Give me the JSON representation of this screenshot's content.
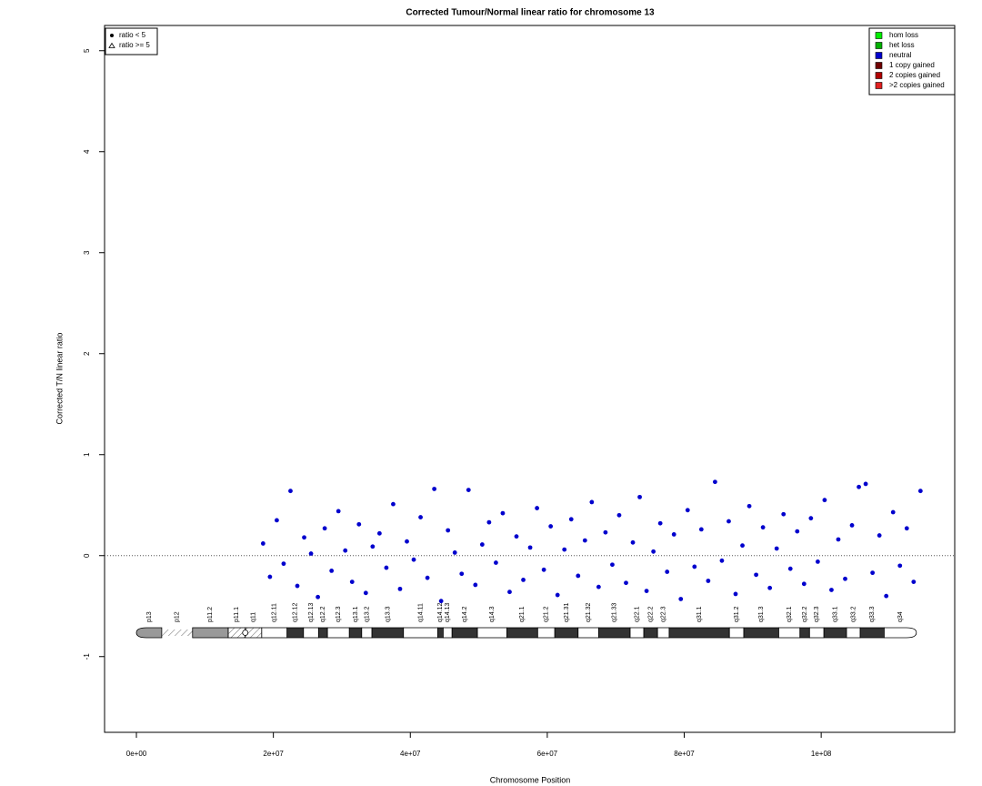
{
  "chart_data": {
    "type": "scatter",
    "title": "Corrected Tumour/Normal linear ratio for chromosome  13",
    "x_label": "Chromosome Position",
    "y_label": "Corrected T/N linear ratio",
    "xlim": [
      -4650000,
      119500000
    ],
    "ylim": [
      -1.75,
      5.25
    ],
    "xticks": [
      {
        "value": 0,
        "label": "0e+00"
      },
      {
        "value": 20000000,
        "label": "2e+07"
      },
      {
        "value": 40000000,
        "label": "4e+07"
      },
      {
        "value": 60000000,
        "label": "6e+07"
      },
      {
        "value": 80000000,
        "label": "8e+07"
      },
      {
        "value": 100000000,
        "label": "1e+08"
      }
    ],
    "yticks": [
      -1,
      0,
      1,
      2,
      3,
      4,
      5
    ],
    "reference_line": 0,
    "series": [
      {
        "name": "neutral",
        "color": "#0000cd",
        "x": [
          18500000,
          19500000,
          20500000,
          21500000,
          22500000,
          23500000,
          24500000,
          25500000,
          26500000,
          27500000,
          28500000,
          29500000,
          30500000,
          31500000,
          32500000,
          33500000,
          34500000,
          35500000,
          36500000,
          37500000,
          38500000,
          39500000,
          40500000,
          41500000,
          42500000,
          43500000,
          44500000,
          45500000,
          46500000,
          47500000,
          48500000,
          49500000,
          50500000,
          51500000,
          52500000,
          53500000,
          54500000,
          55500000,
          56500000,
          57500000,
          58500000,
          59500000,
          60500000,
          61500000,
          62500000,
          63500000,
          64500000,
          65500000,
          66500000,
          67500000,
          68500000,
          69500000,
          70500000,
          71500000,
          72500000,
          73500000,
          74500000,
          75500000,
          76500000,
          77500000,
          78500000,
          79500000,
          80500000,
          81500000,
          82500000,
          83500000,
          84500000,
          85500000,
          86500000,
          87500000,
          88500000,
          89500000,
          90500000,
          91500000,
          92500000,
          93500000,
          94500000,
          95500000,
          96500000,
          97500000,
          98500000,
          99500000,
          100500000,
          101500000,
          102500000,
          103500000,
          104500000,
          105500000,
          106500000,
          107500000,
          108500000,
          109500000,
          110500000,
          111500000,
          112500000,
          113500000,
          114500000
        ],
        "values": [
          0.12,
          -0.21,
          0.35,
          -0.08,
          0.64,
          -0.3,
          0.18,
          0.02,
          -0.41,
          0.27,
          -0.15,
          0.44,
          0.05,
          -0.26,
          0.31,
          -0.37,
          0.09,
          0.22,
          -0.12,
          0.51,
          -0.33,
          0.14,
          -0.04,
          0.38,
          -0.22,
          0.66,
          -0.45,
          0.25,
          0.03,
          -0.18,
          0.65,
          -0.29,
          0.11,
          0.33,
          -0.07,
          0.42,
          -0.36,
          0.19,
          -0.24,
          0.08,
          0.47,
          -0.14,
          0.29,
          -0.39,
          0.06,
          0.36,
          -0.2,
          0.15,
          0.53,
          -0.31,
          0.23,
          -0.09,
          0.4,
          -0.27,
          0.13,
          0.58,
          -0.35,
          0.04,
          0.32,
          -0.16,
          0.21,
          -0.43,
          0.45,
          -0.11,
          0.26,
          -0.25,
          0.73,
          -0.05,
          0.34,
          -0.38,
          0.1,
          0.49,
          -0.19,
          0.28,
          -0.32,
          0.07,
          0.41,
          -0.13,
          0.24,
          -0.28,
          0.37,
          -0.06,
          0.55,
          -0.34,
          0.16,
          -0.23,
          0.3,
          0.68,
          0.71,
          -0.17,
          0.2,
          -0.4,
          0.43,
          -0.1,
          0.27,
          -0.26,
          0.64
        ]
      }
    ],
    "point_legend": [
      {
        "label": "ratio < 5",
        "shape": "circle"
      },
      {
        "label": "ratio >= 5",
        "shape": "triangle"
      }
    ],
    "legend": [
      {
        "label": "hom loss",
        "color": "#00ee00"
      },
      {
        "label": "het loss",
        "color": "#00b000"
      },
      {
        "label": "neutral",
        "color": "#0000cd"
      },
      {
        "label": "1 copy gained",
        "color": "#700000"
      },
      {
        "label": "2 copies gained",
        "color": "#b00000"
      },
      {
        "label": ">2 copies gained",
        "color": "#e02020"
      }
    ],
    "ideogram": [
      {
        "label": "p13",
        "start": 0,
        "end": 3700000,
        "stain": "gpos50"
      },
      {
        "label": "p12",
        "start": 3700000,
        "end": 8200000,
        "stain": "stalk"
      },
      {
        "label": "p11.2",
        "start": 8200000,
        "end": 13400000,
        "stain": "gpos50"
      },
      {
        "label": "p11.1",
        "start": 13400000,
        "end": 15900000,
        "stain": "acen"
      },
      {
        "label": "q11",
        "start": 15900000,
        "end": 18300000,
        "stain": "acen"
      },
      {
        "label": "q12.11",
        "start": 18300000,
        "end": 22000000,
        "stain": "gneg"
      },
      {
        "label": "q12.12",
        "start": 22000000,
        "end": 24400000,
        "stain": "gpos100"
      },
      {
        "label": "q12.13",
        "start": 24400000,
        "end": 26600000,
        "stain": "gneg"
      },
      {
        "label": "q12.2",
        "start": 26600000,
        "end": 27900000,
        "stain": "gpos100"
      },
      {
        "label": "q12.3",
        "start": 27900000,
        "end": 31100000,
        "stain": "gneg"
      },
      {
        "label": "q13.1",
        "start": 31100000,
        "end": 32900000,
        "stain": "gpos100"
      },
      {
        "label": "q13.2",
        "start": 32900000,
        "end": 34400000,
        "stain": "gneg"
      },
      {
        "label": "q13.3",
        "start": 34400000,
        "end": 39000000,
        "stain": "gpos100"
      },
      {
        "label": "q14.11",
        "start": 39000000,
        "end": 44000000,
        "stain": "gneg"
      },
      {
        "label": "q14.12",
        "start": 44000000,
        "end": 44800000,
        "stain": "gpos100"
      },
      {
        "label": "q14.13",
        "start": 44800000,
        "end": 46100000,
        "stain": "gneg"
      },
      {
        "label": "q14.2",
        "start": 46100000,
        "end": 49800000,
        "stain": "gpos100"
      },
      {
        "label": "q14.3",
        "start": 49800000,
        "end": 54100000,
        "stain": "gneg"
      },
      {
        "label": "q21.1",
        "start": 54100000,
        "end": 58600000,
        "stain": "gpos100"
      },
      {
        "label": "q21.2",
        "start": 58600000,
        "end": 61100000,
        "stain": "gneg"
      },
      {
        "label": "q21.31",
        "start": 61100000,
        "end": 64500000,
        "stain": "gpos100"
      },
      {
        "label": "q21.32",
        "start": 64500000,
        "end": 67500000,
        "stain": "gneg"
      },
      {
        "label": "q21.33",
        "start": 67500000,
        "end": 72100000,
        "stain": "gpos100"
      },
      {
        "label": "q22.1",
        "start": 72100000,
        "end": 74100000,
        "stain": "gneg"
      },
      {
        "label": "q22.2",
        "start": 74100000,
        "end": 76100000,
        "stain": "gpos100"
      },
      {
        "label": "q22.3",
        "start": 76100000,
        "end": 77800000,
        "stain": "gneg"
      },
      {
        "label": "q31.1",
        "start": 77800000,
        "end": 86600000,
        "stain": "gpos100"
      },
      {
        "label": "q31.2",
        "start": 86600000,
        "end": 88700000,
        "stain": "gneg"
      },
      {
        "label": "q31.3",
        "start": 88700000,
        "end": 93800000,
        "stain": "gpos100"
      },
      {
        "label": "q32.1",
        "start": 93800000,
        "end": 96900000,
        "stain": "gneg"
      },
      {
        "label": "q32.2",
        "start": 96900000,
        "end": 98300000,
        "stain": "gpos100"
      },
      {
        "label": "q32.3",
        "start": 98300000,
        "end": 100400000,
        "stain": "gneg"
      },
      {
        "label": "q33.1",
        "start": 100400000,
        "end": 103700000,
        "stain": "gpos100"
      },
      {
        "label": "q33.2",
        "start": 103700000,
        "end": 105700000,
        "stain": "gneg"
      },
      {
        "label": "q33.3",
        "start": 105700000,
        "end": 109200000,
        "stain": "gpos100"
      },
      {
        "label": "q34",
        "start": 109200000,
        "end": 113900000,
        "stain": "gneg"
      }
    ]
  }
}
